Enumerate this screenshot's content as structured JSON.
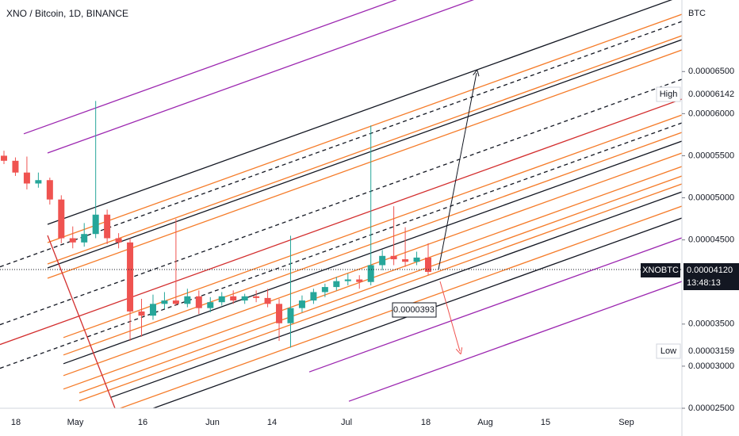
{
  "header": {
    "title": "XNO / Bitcoin, 1D, BINANCE"
  },
  "price_axis": {
    "unit": "BTC",
    "ylim": [
      2.5e-05,
      7.35e-05
    ],
    "ticks": [
      {
        "value": 6.5e-05,
        "label": "0.00006500"
      },
      {
        "value": 6e-05,
        "label": "0.00006000"
      },
      {
        "value": 5.5e-05,
        "label": "0.00005500"
      },
      {
        "value": 5e-05,
        "label": "0.00005000"
      },
      {
        "value": 4.5e-05,
        "label": "0.00004500"
      },
      {
        "value": 3.5e-05,
        "label": "0.00003500"
      },
      {
        "value": 3e-05,
        "label": "0.00003000"
      },
      {
        "value": 2.5e-05,
        "label": "0.00002500"
      }
    ]
  },
  "time_axis": {
    "labels": [
      "18",
      "May",
      "16",
      "Jun",
      "14",
      "Jul",
      "18",
      "Aug",
      "15",
      "Sep"
    ]
  },
  "badges": {
    "high": {
      "label": "High",
      "value": {
        "value": 6.142e-05,
        "label": "0.00006142"
      }
    },
    "symbol": {
      "label": "XNOBTC",
      "value": {
        "value": 4.12e-05,
        "label": "0.00004120"
      },
      "countdown": "13:48:13"
    },
    "low": {
      "label": "Low",
      "value": {
        "value": 3.159e-05,
        "label": "0.00003159"
      }
    }
  },
  "annotation": {
    "value": 3.93e-05,
    "label": "0.0000393"
  },
  "candles": [
    [
      5.5e-05,
      5.56e-05,
      5.4e-05,
      5.44e-05
    ],
    [
      5.44e-05,
      5.48e-05,
      5.26e-05,
      5.3e-05
    ],
    [
      5.3e-05,
      5.49e-05,
      5.1e-05,
      5.17e-05
    ],
    [
      5.17e-05,
      5.3e-05,
      5.12e-05,
      5.21e-05
    ],
    [
      5.21e-05,
      5.24e-05,
      4.92e-05,
      4.98e-05
    ],
    [
      4.98e-05,
      5.03e-05,
      4.46e-05,
      4.52e-05
    ],
    [
      4.52e-05,
      4.66e-05,
      4.4e-05,
      4.47e-05
    ],
    [
      4.47e-05,
      4.7e-05,
      4.42e-05,
      4.57e-05
    ],
    [
      4.57e-05,
      6.15e-05,
      4.52e-05,
      4.8e-05
    ],
    [
      4.8e-05,
      4.86e-05,
      4.45e-05,
      4.52e-05
    ],
    [
      4.52e-05,
      4.58e-05,
      4.4e-05,
      4.47e-05
    ],
    [
      4.47e-05,
      4.52e-05,
      3.3e-05,
      3.65e-05
    ],
    [
      3.65e-05,
      3.8e-05,
      3.35e-05,
      3.6e-05
    ],
    [
      3.6e-05,
      3.85e-05,
      3.55e-05,
      3.74e-05
    ],
    [
      3.74e-05,
      3.88e-05,
      3.68e-05,
      3.78e-05
    ],
    [
      3.78e-05,
      4.75e-05,
      3.72e-05,
      3.74e-05
    ],
    [
      3.74e-05,
      3.92e-05,
      3.7e-05,
      3.83e-05
    ],
    [
      3.83e-05,
      3.9e-05,
      3.62e-05,
      3.69e-05
    ],
    [
      3.69e-05,
      3.82e-05,
      3.64e-05,
      3.76e-05
    ],
    [
      3.76e-05,
      3.88e-05,
      3.72e-05,
      3.83e-05
    ],
    [
      3.83e-05,
      3.9e-05,
      3.74e-05,
      3.78e-05
    ],
    [
      3.78e-05,
      3.86e-05,
      3.74e-05,
      3.83e-05
    ],
    [
      3.83e-05,
      3.9e-05,
      3.76e-05,
      3.81e-05
    ],
    [
      3.81e-05,
      3.92e-05,
      3.7e-05,
      3.74e-05
    ],
    [
      3.74e-05,
      3.8e-05,
      3.3e-05,
      3.51e-05
    ],
    [
      3.51e-05,
      4.55e-05,
      3.22e-05,
      3.69e-05
    ],
    [
      3.69e-05,
      3.84e-05,
      3.64e-05,
      3.78e-05
    ],
    [
      3.78e-05,
      3.92e-05,
      3.74e-05,
      3.88e-05
    ],
    [
      3.88e-05,
      3.98e-05,
      3.82e-05,
      3.94e-05
    ],
    [
      3.94e-05,
      4.06e-05,
      3.9e-05,
      4.01e-05
    ],
    [
      4.01e-05,
      4.1e-05,
      3.96e-05,
      4.03e-05
    ],
    [
      4.03e-05,
      4.08e-05,
      3.92e-05,
      4e-05
    ],
    [
      4e-05,
      5.86e-05,
      3.96e-05,
      4.2e-05
    ],
    [
      4.2e-05,
      4.38e-05,
      4.14e-05,
      4.31e-05
    ],
    [
      4.31e-05,
      4.9e-05,
      4.2e-05,
      4.27e-05
    ],
    [
      4.27e-05,
      4.65e-05,
      4.18e-05,
      4.24e-05
    ],
    [
      4.24e-05,
      4.36e-05,
      4.2e-05,
      4.29e-05
    ],
    [
      4.29e-05,
      4.46e-05,
      4.08e-05,
      4.12e-05
    ]
  ],
  "colors": {
    "up": "#26a69a",
    "down": "#ef5350"
  }
}
